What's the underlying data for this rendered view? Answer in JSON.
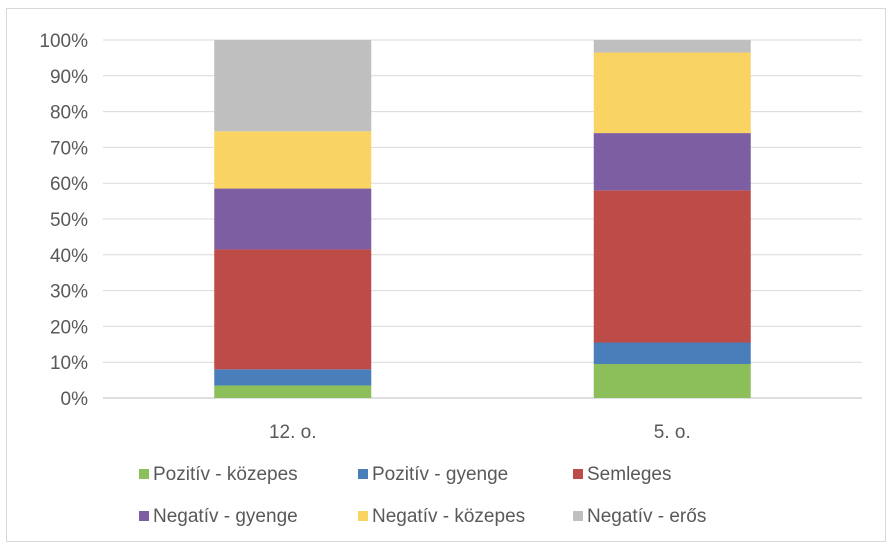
{
  "chart_data": {
    "type": "bar",
    "stacked": "percent",
    "categories": [
      "12. o.",
      "5. o."
    ],
    "series": [
      {
        "name": "Pozitív - közepes",
        "color": "#8cbf5a",
        "values": [
          3.5,
          9.5
        ]
      },
      {
        "name": "Pozitív - gyenge",
        "color": "#4a7ebb",
        "values": [
          4.5,
          6.0
        ]
      },
      {
        "name": "Semleges",
        "color": "#bd4b48",
        "values": [
          33.5,
          42.5
        ]
      },
      {
        "name": "Negatív - gyenge",
        "color": "#7d5ea3",
        "values": [
          17.0,
          16.0
        ]
      },
      {
        "name": "Negatív - közepes",
        "color": "#f9d462",
        "values": [
          16.0,
          22.5
        ]
      },
      {
        "name": "Negatív - erős",
        "color": "#bfbfbf",
        "values": [
          25.5,
          3.5
        ]
      }
    ],
    "y_ticks": [
      "0%",
      "10%",
      "20%",
      "30%",
      "40%",
      "50%",
      "60%",
      "70%",
      "80%",
      "90%",
      "100%"
    ],
    "ylim": [
      0,
      100
    ],
    "grid": true,
    "legend_position": "bottom"
  }
}
